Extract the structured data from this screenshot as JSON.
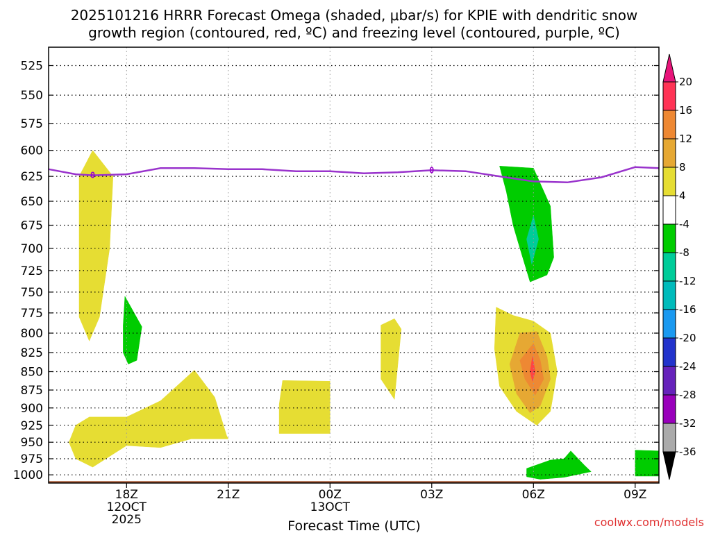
{
  "chart_data": {
    "type": "heatmap",
    "title_lines": [
      "2025101216 HRRR Forecast Omega (shaded, μbar/s) for KPIE with dendritic snow",
      "growth region (contoured, red, ºC) and freezing level (contoured, purple, ºC)"
    ],
    "xlabel": "Forecast Time (UTC)",
    "credit": "coolwx.com/models",
    "x_range_hours": [
      15.7,
      33.7
    ],
    "x_ticks": [
      {
        "hour": 18,
        "lines": [
          "18Z",
          "12OCT",
          "2025"
        ]
      },
      {
        "hour": 21,
        "lines": [
          "21Z"
        ]
      },
      {
        "hour": 24,
        "lines": [
          "00Z",
          "13OCT"
        ]
      },
      {
        "hour": 27,
        "lines": [
          "03Z"
        ]
      },
      {
        "hour": 30,
        "lines": [
          "06Z"
        ]
      },
      {
        "hour": 33,
        "lines": [
          "09Z"
        ]
      }
    ],
    "y_range_hpa": [
      1013,
      510
    ],
    "y_ticks": [
      525,
      550,
      575,
      600,
      625,
      650,
      675,
      700,
      725,
      750,
      775,
      800,
      825,
      850,
      875,
      900,
      925,
      950,
      975,
      1000
    ],
    "ground_level_hpa": 1010,
    "freezing_level": {
      "color": "#9933cc",
      "label": "0",
      "label_hours": [
        17.0,
        27.0
      ],
      "points": [
        [
          15.7,
          618
        ],
        [
          16.5,
          623
        ],
        [
          17.0,
          624
        ],
        [
          18.0,
          623
        ],
        [
          19.0,
          617
        ],
        [
          20.0,
          617
        ],
        [
          21.0,
          618
        ],
        [
          22.0,
          618
        ],
        [
          23.0,
          620
        ],
        [
          24.0,
          620
        ],
        [
          25.0,
          622
        ],
        [
          26.0,
          621
        ],
        [
          27.0,
          619
        ],
        [
          28.0,
          620
        ],
        [
          29.0,
          625
        ],
        [
          30.0,
          630
        ],
        [
          31.0,
          631
        ],
        [
          32.0,
          626
        ],
        [
          33.0,
          616
        ],
        [
          33.7,
          617
        ]
      ]
    },
    "omega_regions": [
      {
        "value": "4 to 8",
        "color": "#e6dd33",
        "points": [
          [
            17.0,
            600
          ],
          [
            17.6,
            625
          ],
          [
            17.5,
            700
          ],
          [
            17.2,
            780
          ],
          [
            16.9,
            810
          ],
          [
            16.6,
            780
          ],
          [
            16.6,
            625
          ]
        ]
      },
      {
        "value": "-8 to -4",
        "color": "#00cc00",
        "points": [
          [
            17.95,
            755
          ],
          [
            18.45,
            792
          ],
          [
            18.3,
            835
          ],
          [
            18.05,
            840
          ],
          [
            17.9,
            825
          ],
          [
            17.9,
            790
          ]
        ]
      },
      {
        "value": "4 to 8",
        "color": "#e6dd33",
        "points": [
          [
            20.0,
            848
          ],
          [
            20.6,
            885
          ],
          [
            20.95,
            940
          ],
          [
            21.0,
            945
          ],
          [
            19.9,
            945
          ],
          [
            19.0,
            958
          ],
          [
            18.0,
            955
          ],
          [
            17.0,
            988
          ],
          [
            16.5,
            975
          ],
          [
            16.3,
            950
          ],
          [
            16.5,
            925
          ],
          [
            16.9,
            913
          ],
          [
            18.0,
            913
          ],
          [
            19.0,
            890
          ]
        ]
      },
      {
        "value": "4 to 8",
        "color": "#e6dd33",
        "points": [
          [
            22.6,
            862
          ],
          [
            24.0,
            863
          ],
          [
            24.0,
            937
          ],
          [
            22.5,
            937
          ],
          [
            22.5,
            895
          ]
        ]
      },
      {
        "value": "4 to 8",
        "color": "#e6dd33",
        "points": [
          [
            25.5,
            790
          ],
          [
            25.9,
            782
          ],
          [
            26.1,
            795
          ],
          [
            25.9,
            888
          ],
          [
            25.5,
            860
          ],
          [
            25.5,
            820
          ]
        ]
      },
      {
        "value": "-8 to -4",
        "color": "#00cc00",
        "points": [
          [
            29.0,
            615
          ],
          [
            30.0,
            617
          ],
          [
            30.5,
            655
          ],
          [
            30.6,
            710
          ],
          [
            30.4,
            730
          ],
          [
            29.9,
            738
          ],
          [
            29.6,
            700
          ],
          [
            29.4,
            675
          ],
          [
            29.2,
            640
          ]
        ]
      },
      {
        "value": "-12 to -8",
        "color": "#00cc99",
        "points": [
          [
            30.0,
            665
          ],
          [
            30.15,
            690
          ],
          [
            29.95,
            718
          ],
          [
            29.8,
            690
          ]
        ]
      },
      {
        "value": "4 to 8",
        "color": "#e6dd33",
        "points": [
          [
            28.9,
            768
          ],
          [
            29.4,
            778
          ],
          [
            30.0,
            785
          ],
          [
            30.5,
            800
          ],
          [
            30.7,
            850
          ],
          [
            30.5,
            905
          ],
          [
            30.1,
            925
          ],
          [
            29.5,
            905
          ],
          [
            29.0,
            870
          ],
          [
            28.85,
            820
          ]
        ]
      },
      {
        "value": "8 to 12",
        "color": "#e6a833",
        "points": [
          [
            29.6,
            800
          ],
          [
            30.1,
            798
          ],
          [
            30.4,
            830
          ],
          [
            30.5,
            860
          ],
          [
            30.2,
            897
          ],
          [
            29.9,
            907
          ],
          [
            29.5,
            880
          ],
          [
            29.3,
            840
          ]
        ]
      },
      {
        "value": "12 to 16",
        "color": "#ee8833",
        "points": [
          [
            30.0,
            813
          ],
          [
            30.2,
            835
          ],
          [
            30.3,
            860
          ],
          [
            30.05,
            882
          ],
          [
            29.75,
            860
          ],
          [
            29.6,
            835
          ]
        ]
      },
      {
        "value": "16 to 20",
        "color": "#ff4444",
        "points": [
          [
            29.97,
            830
          ],
          [
            30.05,
            850
          ],
          [
            29.97,
            863
          ],
          [
            29.9,
            850
          ]
        ]
      },
      {
        "value": "-8 to -4",
        "color": "#00cc00",
        "points": [
          [
            29.8,
            990
          ],
          [
            30.5,
            977
          ],
          [
            30.9,
            975
          ],
          [
            31.1,
            963
          ],
          [
            31.5,
            985
          ],
          [
            31.7,
            995
          ],
          [
            30.9,
            1004
          ],
          [
            30.2,
            1007
          ],
          [
            29.8,
            1003
          ]
        ]
      },
      {
        "value": "-8 to -4",
        "color": "#00cc00",
        "points": [
          [
            33.0,
            962
          ],
          [
            33.7,
            963
          ],
          [
            33.7,
            1002
          ],
          [
            33.0,
            1002
          ]
        ]
      }
    ],
    "colorbar": {
      "labels": [
        "20",
        "16",
        "12",
        "8",
        "4",
        "-4",
        "-8",
        "-12",
        "-16",
        "-20",
        "-24",
        "-28",
        "-32",
        "-36"
      ],
      "top_color": "#e8147a",
      "bottom_color": "#000000",
      "colors": [
        "#ff3355",
        "#ee8833",
        "#e6a833",
        "#e6dd33",
        "#ffffff",
        "#00cc00",
        "#00cc99",
        "#00bbbb",
        "#1a99f0",
        "#2233cc",
        "#6622bb",
        "#9900bb",
        "#aaaaaa"
      ]
    },
    "colors": {
      "ground": "#a0522d",
      "grid": "#000000"
    }
  }
}
